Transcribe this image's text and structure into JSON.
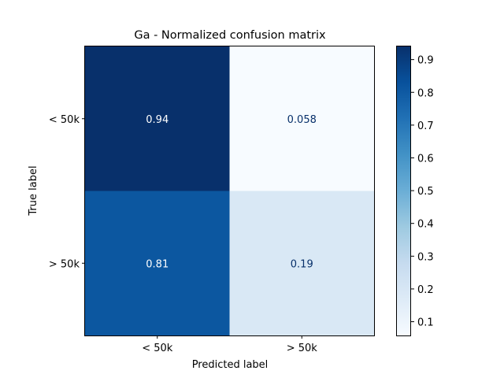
{
  "chart_data": {
    "type": "heatmap",
    "title": "Ga - Normalized confusion matrix",
    "xlabel": "Predicted label",
    "ylabel": "True label",
    "x_categories": [
      "< 50k",
      "> 50k"
    ],
    "y_categories": [
      "< 50k",
      "> 50k"
    ],
    "values": [
      [
        0.94,
        0.058
      ],
      [
        0.81,
        0.19
      ]
    ],
    "value_labels": [
      [
        "0.94",
        "0.058"
      ],
      [
        "0.81",
        "0.19"
      ]
    ],
    "colormap": "Blues",
    "colorbar": {
      "range": [
        0.058,
        0.94
      ],
      "ticks": [
        0.1,
        0.2,
        0.3,
        0.4,
        0.5,
        0.6,
        0.7,
        0.8,
        0.9
      ],
      "tick_labels": [
        "0.1",
        "0.2",
        "0.3",
        "0.4",
        "0.5",
        "0.6",
        "0.7",
        "0.8",
        "0.9"
      ]
    },
    "grid": false
  }
}
